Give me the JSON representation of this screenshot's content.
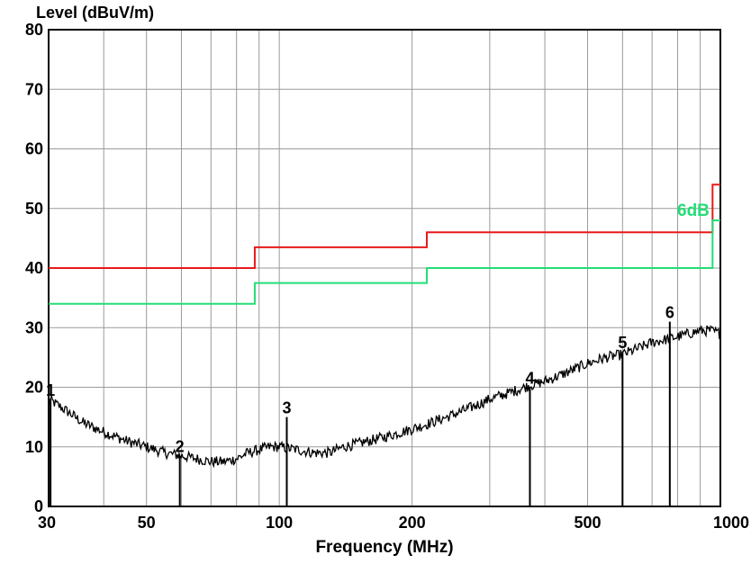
{
  "chart_data": {
    "type": "line",
    "ylabel": "Level (dBuV/m)",
    "xlabel": "Frequency (MHz)",
    "x_scale": "log",
    "xlim": [
      30,
      1000
    ],
    "ylim": [
      0,
      80
    ],
    "grid": true,
    "x_ticks": [
      {
        "value": 30,
        "label": "30"
      },
      {
        "value": 50,
        "label": "50"
      },
      {
        "value": 100,
        "label": "100"
      },
      {
        "value": 200,
        "label": "200"
      },
      {
        "value": 500,
        "label": "500"
      },
      {
        "value": 1000,
        "label": "1000"
      }
    ],
    "y_ticks": [
      {
        "value": 0,
        "label": "0"
      },
      {
        "value": 10,
        "label": "10"
      },
      {
        "value": 20,
        "label": "20"
      },
      {
        "value": 30,
        "label": "30"
      },
      {
        "value": 40,
        "label": "40"
      },
      {
        "value": 50,
        "label": "50"
      },
      {
        "value": 60,
        "label": "60"
      },
      {
        "value": 70,
        "label": "70"
      },
      {
        "value": 80,
        "label": "80"
      }
    ],
    "limit_lines": [
      {
        "color": "#e8191a",
        "points": [
          [
            30,
            40
          ],
          [
            88,
            40
          ],
          [
            88,
            43.5
          ],
          [
            216,
            43.5
          ],
          [
            216,
            46
          ],
          [
            960,
            46
          ],
          [
            960,
            54
          ],
          [
            1000,
            54
          ]
        ]
      },
      {
        "color": "#22dd77",
        "label": "6dB",
        "points": [
          [
            30,
            34
          ],
          [
            88,
            34
          ],
          [
            88,
            37.5
          ],
          [
            216,
            37.5
          ],
          [
            216,
            40
          ],
          [
            960,
            40
          ],
          [
            960,
            48
          ],
          [
            1000,
            48
          ]
        ]
      }
    ],
    "trace": {
      "color": "#000000",
      "points": [
        [
          30,
          18
        ],
        [
          33,
          16
        ],
        [
          36,
          14
        ],
        [
          40,
          12.5
        ],
        [
          45,
          11
        ],
        [
          50,
          10
        ],
        [
          55,
          9
        ],
        [
          60,
          8.5
        ],
        [
          65,
          8
        ],
        [
          70,
          7.5
        ],
        [
          75,
          7.5
        ],
        [
          80,
          8
        ],
        [
          85,
          9
        ],
        [
          90,
          9.5
        ],
        [
          95,
          10
        ],
        [
          100,
          10
        ],
        [
          110,
          9.5
        ],
        [
          120,
          9
        ],
        [
          130,
          9
        ],
        [
          140,
          10
        ],
        [
          150,
          10.5
        ],
        [
          160,
          11
        ],
        [
          170,
          11.5
        ],
        [
          180,
          12
        ],
        [
          190,
          12.5
        ],
        [
          200,
          13
        ],
        [
          210,
          13.5
        ],
        [
          220,
          14
        ],
        [
          240,
          15
        ],
        [
          260,
          16
        ],
        [
          280,
          17
        ],
        [
          300,
          18
        ],
        [
          330,
          19
        ],
        [
          360,
          20
        ],
        [
          400,
          21
        ],
        [
          450,
          22.5
        ],
        [
          500,
          24
        ],
        [
          550,
          25
        ],
        [
          600,
          25.5
        ],
        [
          650,
          26.5
        ],
        [
          700,
          27.5
        ],
        [
          750,
          28
        ],
        [
          800,
          28.5
        ],
        [
          850,
          29
        ],
        [
          900,
          29.5
        ],
        [
          950,
          29.5
        ],
        [
          1000,
          29
        ]
      ]
    },
    "markers": [
      {
        "label": "1",
        "freq": 30.3,
        "level": 18
      },
      {
        "label": "2",
        "freq": 59.5,
        "level": 8.5
      },
      {
        "label": "3",
        "freq": 104,
        "level": 15
      },
      {
        "label": "4",
        "freq": 370,
        "level": 20
      },
      {
        "label": "5",
        "freq": 600,
        "level": 26
      },
      {
        "label": "6",
        "freq": 768,
        "level": 31
      }
    ]
  }
}
